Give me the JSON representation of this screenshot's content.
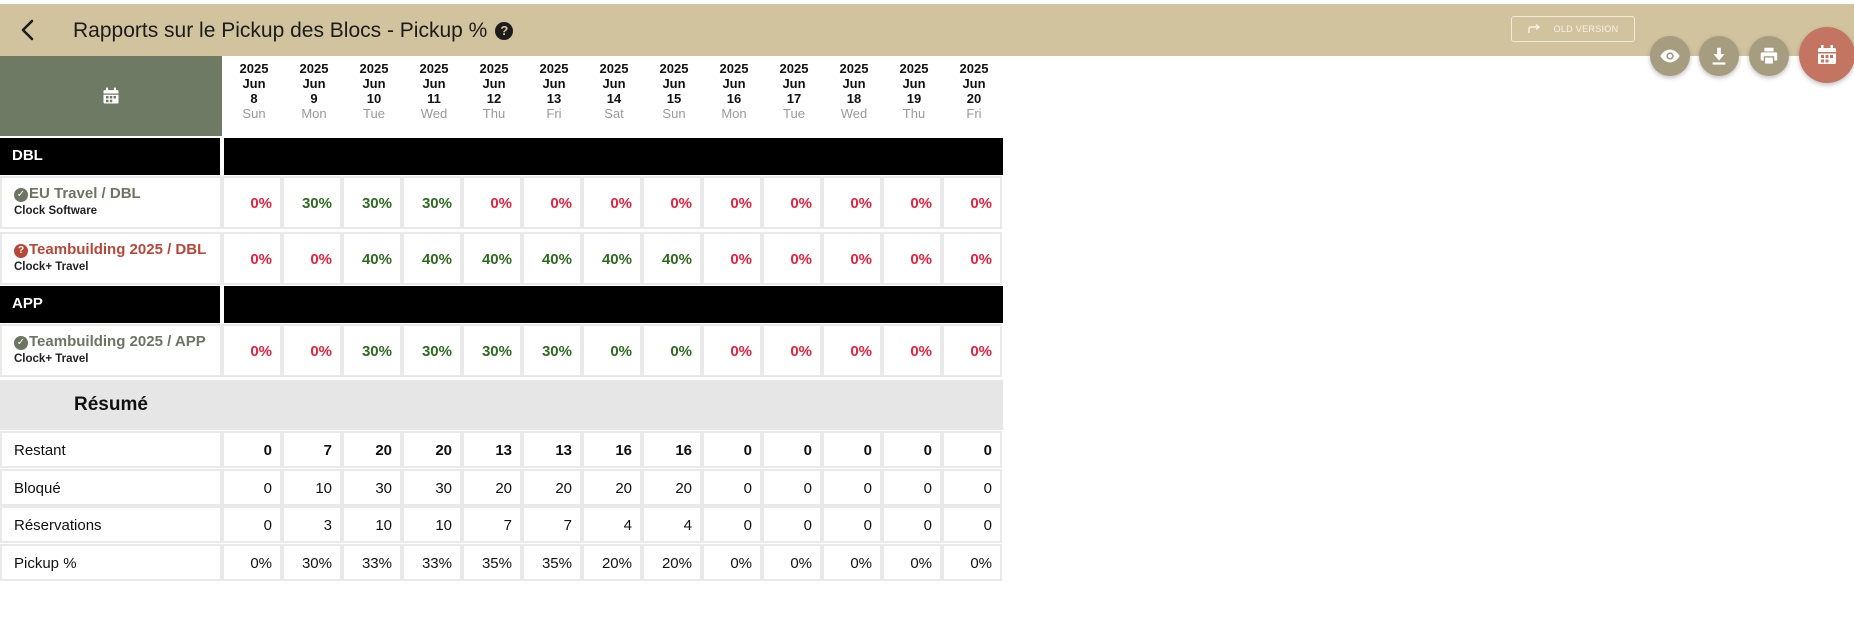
{
  "header": {
    "title": "Rapports sur le Pickup des Blocs - Pickup %",
    "help_icon": "?",
    "old_version_label": "OLD VERSION",
    "accent_color": "#d2c39f"
  },
  "fabs": [
    {
      "name": "eye-icon"
    },
    {
      "name": "download-icon"
    },
    {
      "name": "print-icon"
    },
    {
      "name": "calendar-icon"
    }
  ],
  "dates": [
    {
      "year": "2025",
      "month": "Jun",
      "day": "8",
      "dow": "Sun"
    },
    {
      "year": "2025",
      "month": "Jun",
      "day": "9",
      "dow": "Mon"
    },
    {
      "year": "2025",
      "month": "Jun",
      "day": "10",
      "dow": "Tue"
    },
    {
      "year": "2025",
      "month": "Jun",
      "day": "11",
      "dow": "Wed"
    },
    {
      "year": "2025",
      "month": "Jun",
      "day": "12",
      "dow": "Thu"
    },
    {
      "year": "2025",
      "month": "Jun",
      "day": "13",
      "dow": "Fri"
    },
    {
      "year": "2025",
      "month": "Jun",
      "day": "14",
      "dow": "Sat"
    },
    {
      "year": "2025",
      "month": "Jun",
      "day": "15",
      "dow": "Sun"
    },
    {
      "year": "2025",
      "month": "Jun",
      "day": "16",
      "dow": "Mon"
    },
    {
      "year": "2025",
      "month": "Jun",
      "day": "17",
      "dow": "Tue"
    },
    {
      "year": "2025",
      "month": "Jun",
      "day": "18",
      "dow": "Wed"
    },
    {
      "year": "2025",
      "month": "Jun",
      "day": "19",
      "dow": "Thu"
    },
    {
      "year": "2025",
      "month": "Jun",
      "day": "20",
      "dow": "Fri"
    }
  ],
  "sections": [
    {
      "label": "DBL",
      "blocks": [
        {
          "name": "EU Travel / DBL",
          "sub": "Clock Software",
          "status": "ok",
          "values": [
            "0%",
            "30%",
            "30%",
            "30%",
            "0%",
            "0%",
            "0%",
            "0%",
            "0%",
            "0%",
            "0%",
            "0%",
            "0%"
          ]
        },
        {
          "name": "Teambuilding 2025 / DBL",
          "sub": "Clock+ Travel",
          "status": "warn",
          "values": [
            "0%",
            "0%",
            "40%",
            "40%",
            "40%",
            "40%",
            "40%",
            "40%",
            "0%",
            "0%",
            "0%",
            "0%",
            "0%"
          ]
        }
      ]
    },
    {
      "label": "APP",
      "blocks": [
        {
          "name": "Teambuilding 2025 / APP",
          "sub": "Clock+ Travel",
          "status": "ok",
          "values": [
            "0%",
            "0%",
            "30%",
            "30%",
            "30%",
            "30%",
            "0%",
            "0%",
            "0%",
            "0%",
            "0%",
            "0%",
            "0%"
          ]
        }
      ]
    }
  ],
  "cell_colors": {
    "sections": [
      [
        [
          "red",
          "green",
          "green",
          "green",
          "red",
          "red",
          "red",
          "red",
          "red",
          "red",
          "red",
          "red",
          "red"
        ],
        [
          "red",
          "red",
          "green",
          "green",
          "green",
          "green",
          "green",
          "green",
          "red",
          "red",
          "red",
          "red",
          "red"
        ]
      ],
      [
        [
          "red",
          "red",
          "green",
          "green",
          "green",
          "green",
          "green",
          "green",
          "red",
          "red",
          "red",
          "red",
          "red"
        ]
      ]
    ]
  },
  "summary": {
    "title": "Résumé",
    "rows": [
      {
        "label": "Restant",
        "bold": true,
        "values": [
          "0",
          "7",
          "20",
          "20",
          "13",
          "13",
          "16",
          "16",
          "0",
          "0",
          "0",
          "0",
          "0"
        ],
        "colors": [
          "red",
          "green",
          "green",
          "green",
          "green",
          "green",
          "green",
          "green",
          "red",
          "red",
          "red",
          "red",
          "red"
        ]
      },
      {
        "label": "Bloqué",
        "bold": false,
        "values": [
          "0",
          "10",
          "30",
          "30",
          "20",
          "20",
          "20",
          "20",
          "0",
          "0",
          "0",
          "0",
          "0"
        ]
      },
      {
        "label": "Réservations",
        "bold": false,
        "values": [
          "0",
          "3",
          "10",
          "10",
          "7",
          "7",
          "4",
          "4",
          "0",
          "0",
          "0",
          "0",
          "0"
        ]
      },
      {
        "label": "Pickup %",
        "bold": false,
        "values": [
          "0%",
          "30%",
          "33%",
          "33%",
          "35%",
          "35%",
          "20%",
          "20%",
          "0%",
          "0%",
          "0%",
          "0%",
          "0%"
        ]
      }
    ]
  }
}
